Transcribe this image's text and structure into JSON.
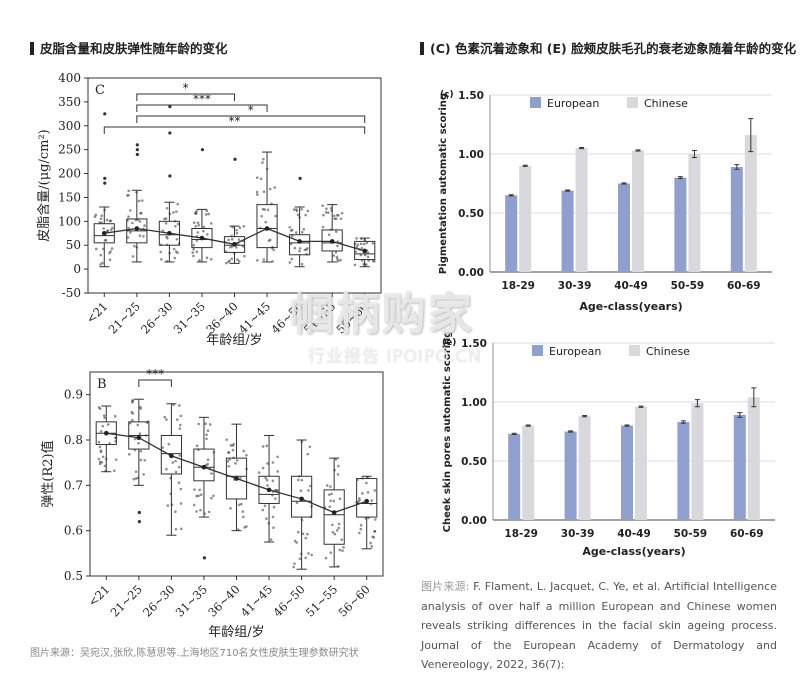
{
  "headings": {
    "left": "皮脂含量和皮肤弹性随年龄的变化",
    "right": "(C) 色素沉着迹象和 (E) 脸颊皮肤毛孔的衰老迹象随着年龄的变化"
  },
  "chart_data": [
    {
      "type": "box",
      "panel": "C",
      "ylabel": "皮脂含量/(μg/cm²)",
      "xlabel": "年龄组/岁",
      "ylim": [
        -50,
        400
      ],
      "yticks": [
        -50,
        0,
        50,
        100,
        150,
        200,
        250,
        300,
        350,
        400
      ],
      "categories": [
        "<21",
        "21~25",
        "26~30",
        "31~35",
        "36~40",
        "41~45",
        "46~50",
        "51~55",
        "56~60"
      ],
      "boxes": [
        {
          "q1": 55,
          "median": 70,
          "q3": 95,
          "whisker_low": 5,
          "whisker_high": 130,
          "mean": 75
        },
        {
          "q1": 55,
          "median": 80,
          "q3": 105,
          "whisker_low": 15,
          "whisker_high": 165,
          "mean": 85
        },
        {
          "q1": 50,
          "median": 72,
          "q3": 100,
          "whisker_low": 15,
          "whisker_high": 140,
          "mean": 75
        },
        {
          "q1": 45,
          "median": 62,
          "q3": 85,
          "whisker_low": 15,
          "whisker_high": 125,
          "mean": 65
        },
        {
          "q1": 35,
          "median": 50,
          "q3": 68,
          "whisker_low": 12,
          "whisker_high": 90,
          "mean": 52
        },
        {
          "q1": 45,
          "median": 85,
          "q3": 135,
          "whisker_low": 15,
          "whisker_high": 245,
          "mean": 85
        },
        {
          "q1": 30,
          "median": 55,
          "q3": 72,
          "whisker_low": 5,
          "whisker_high": 130,
          "mean": 58
        },
        {
          "q1": 38,
          "median": 55,
          "q3": 82,
          "whisker_low": 15,
          "whisker_high": 135,
          "mean": 58
        },
        {
          "q1": 20,
          "median": 32,
          "q3": 58,
          "whisker_low": 5,
          "whisker_high": 65,
          "mean": 38
        }
      ],
      "outliers": [
        [
          0,
          325
        ],
        [
          0,
          190
        ],
        [
          0,
          180
        ],
        [
          1,
          260
        ],
        [
          1,
          250
        ],
        [
          1,
          240
        ],
        [
          2,
          195
        ],
        [
          2,
          340
        ],
        [
          2,
          285
        ],
        [
          3,
          250
        ],
        [
          4,
          230
        ],
        [
          6,
          190
        ]
      ],
      "significance": [
        {
          "from": 1,
          "to": 4,
          "label": "*"
        },
        {
          "from": 1,
          "to": 5,
          "label": "***"
        },
        {
          "from": 1,
          "to": 8,
          "label": "*"
        },
        {
          "from": 0,
          "to": 8,
          "label": "**"
        }
      ]
    },
    {
      "type": "box",
      "panel": "B",
      "ylabel": "弹性(R2)值",
      "xlabel": "年龄组/岁",
      "ylim": [
        0.5,
        0.95
      ],
      "yticks": [
        0.5,
        0.6,
        0.7,
        0.8,
        0.9
      ],
      "categories": [
        "<21",
        "21~25",
        "26~30",
        "31~35",
        "36~40",
        "41~45",
        "46~50",
        "51~55",
        "56~60"
      ],
      "boxes": [
        {
          "q1": 0.79,
          "median": 0.815,
          "q3": 0.84,
          "whisker_low": 0.73,
          "whisker_high": 0.875,
          "mean": 0.815
        },
        {
          "q1": 0.78,
          "median": 0.81,
          "q3": 0.84,
          "whisker_low": 0.7,
          "whisker_high": 0.89,
          "mean": 0.805
        },
        {
          "q1": 0.725,
          "median": 0.77,
          "q3": 0.81,
          "whisker_low": 0.59,
          "whisker_high": 0.88,
          "mean": 0.765
        },
        {
          "q1": 0.71,
          "median": 0.74,
          "q3": 0.78,
          "whisker_low": 0.63,
          "whisker_high": 0.85,
          "mean": 0.74
        },
        {
          "q1": 0.67,
          "median": 0.72,
          "q3": 0.76,
          "whisker_low": 0.6,
          "whisker_high": 0.835,
          "mean": 0.715
        },
        {
          "q1": 0.66,
          "median": 0.68,
          "q3": 0.72,
          "whisker_low": 0.575,
          "whisker_high": 0.81,
          "mean": 0.69
        },
        {
          "q1": 0.63,
          "median": 0.665,
          "q3": 0.72,
          "whisker_low": 0.515,
          "whisker_high": 0.8,
          "mean": 0.67
        },
        {
          "q1": 0.57,
          "median": 0.635,
          "q3": 0.69,
          "whisker_low": 0.52,
          "whisker_high": 0.76,
          "mean": 0.64
        },
        {
          "q1": 0.63,
          "median": 0.66,
          "q3": 0.715,
          "whisker_low": 0.56,
          "whisker_high": 0.72,
          "mean": 0.665
        }
      ],
      "outliers": [
        [
          1,
          0.62
        ],
        [
          1,
          0.64
        ],
        [
          3,
          0.54
        ]
      ],
      "significance": [
        {
          "from": 1,
          "to": 2,
          "label": "***"
        }
      ]
    },
    {
      "type": "bar",
      "panel": "(c)",
      "ylabel": "Pigmentation automatic scoring",
      "xlabel": "Age-class(years)",
      "ylim": [
        0,
        1.5
      ],
      "yticks": [
        "0.00",
        "0.50",
        "1.00",
        "1.50"
      ],
      "categories": [
        "18-29",
        "30-39",
        "40-49",
        "50-59",
        "60-69"
      ],
      "legend": "top-left",
      "series": [
        {
          "name": "European",
          "color": "#8f9fce",
          "values": [
            0.65,
            0.69,
            0.75,
            0.8,
            0.89
          ],
          "errors": [
            0.005,
            0.005,
            0.005,
            0.008,
            0.02
          ]
        },
        {
          "name": "Chinese",
          "color": "#d8d8dd",
          "values": [
            0.9,
            1.05,
            1.03,
            1.0,
            1.16
          ],
          "errors": [
            0.005,
            0.005,
            0.005,
            0.03,
            0.14
          ]
        }
      ]
    },
    {
      "type": "bar",
      "panel": "(e)",
      "ylabel": "Cheek skin pores automatic scoring",
      "xlabel": "Age-class(years)",
      "ylim": [
        0,
        1.5
      ],
      "yticks": [
        "0.00",
        "0.50",
        "1.00",
        "1.50"
      ],
      "categories": [
        "18-29",
        "30-39",
        "40-49",
        "50-59",
        "60-69"
      ],
      "legend": "top-left",
      "series": [
        {
          "name": "European",
          "color": "#8f9fce",
          "values": [
            0.73,
            0.75,
            0.8,
            0.83,
            0.89
          ],
          "errors": [
            0.005,
            0.005,
            0.005,
            0.01,
            0.02
          ]
        },
        {
          "name": "Chinese",
          "color": "#d8d8dd",
          "values": [
            0.8,
            0.88,
            0.96,
            0.99,
            1.04
          ],
          "errors": [
            0.005,
            0.005,
            0.005,
            0.03,
            0.08
          ]
        }
      ]
    }
  ],
  "source_label": "图片来源:",
  "source_text": "F. Flament, L. Jacquet, C. Ye, et al. Artificial Intelligence analysis of over half a million European and Chinese women reveals striking differences in the facial skin ageing process. Journal of the European Academy of Dermatology and Venereology, 2022, 36(7):",
  "bottom_caption": "图片来源：吴宛汉,张欣,陈慧思等.上海地区710名女性皮肤生理参数研究状",
  "watermark": {
    "main": "帼柄购家",
    "sub": "行业报告 IPOIPO.CN"
  }
}
